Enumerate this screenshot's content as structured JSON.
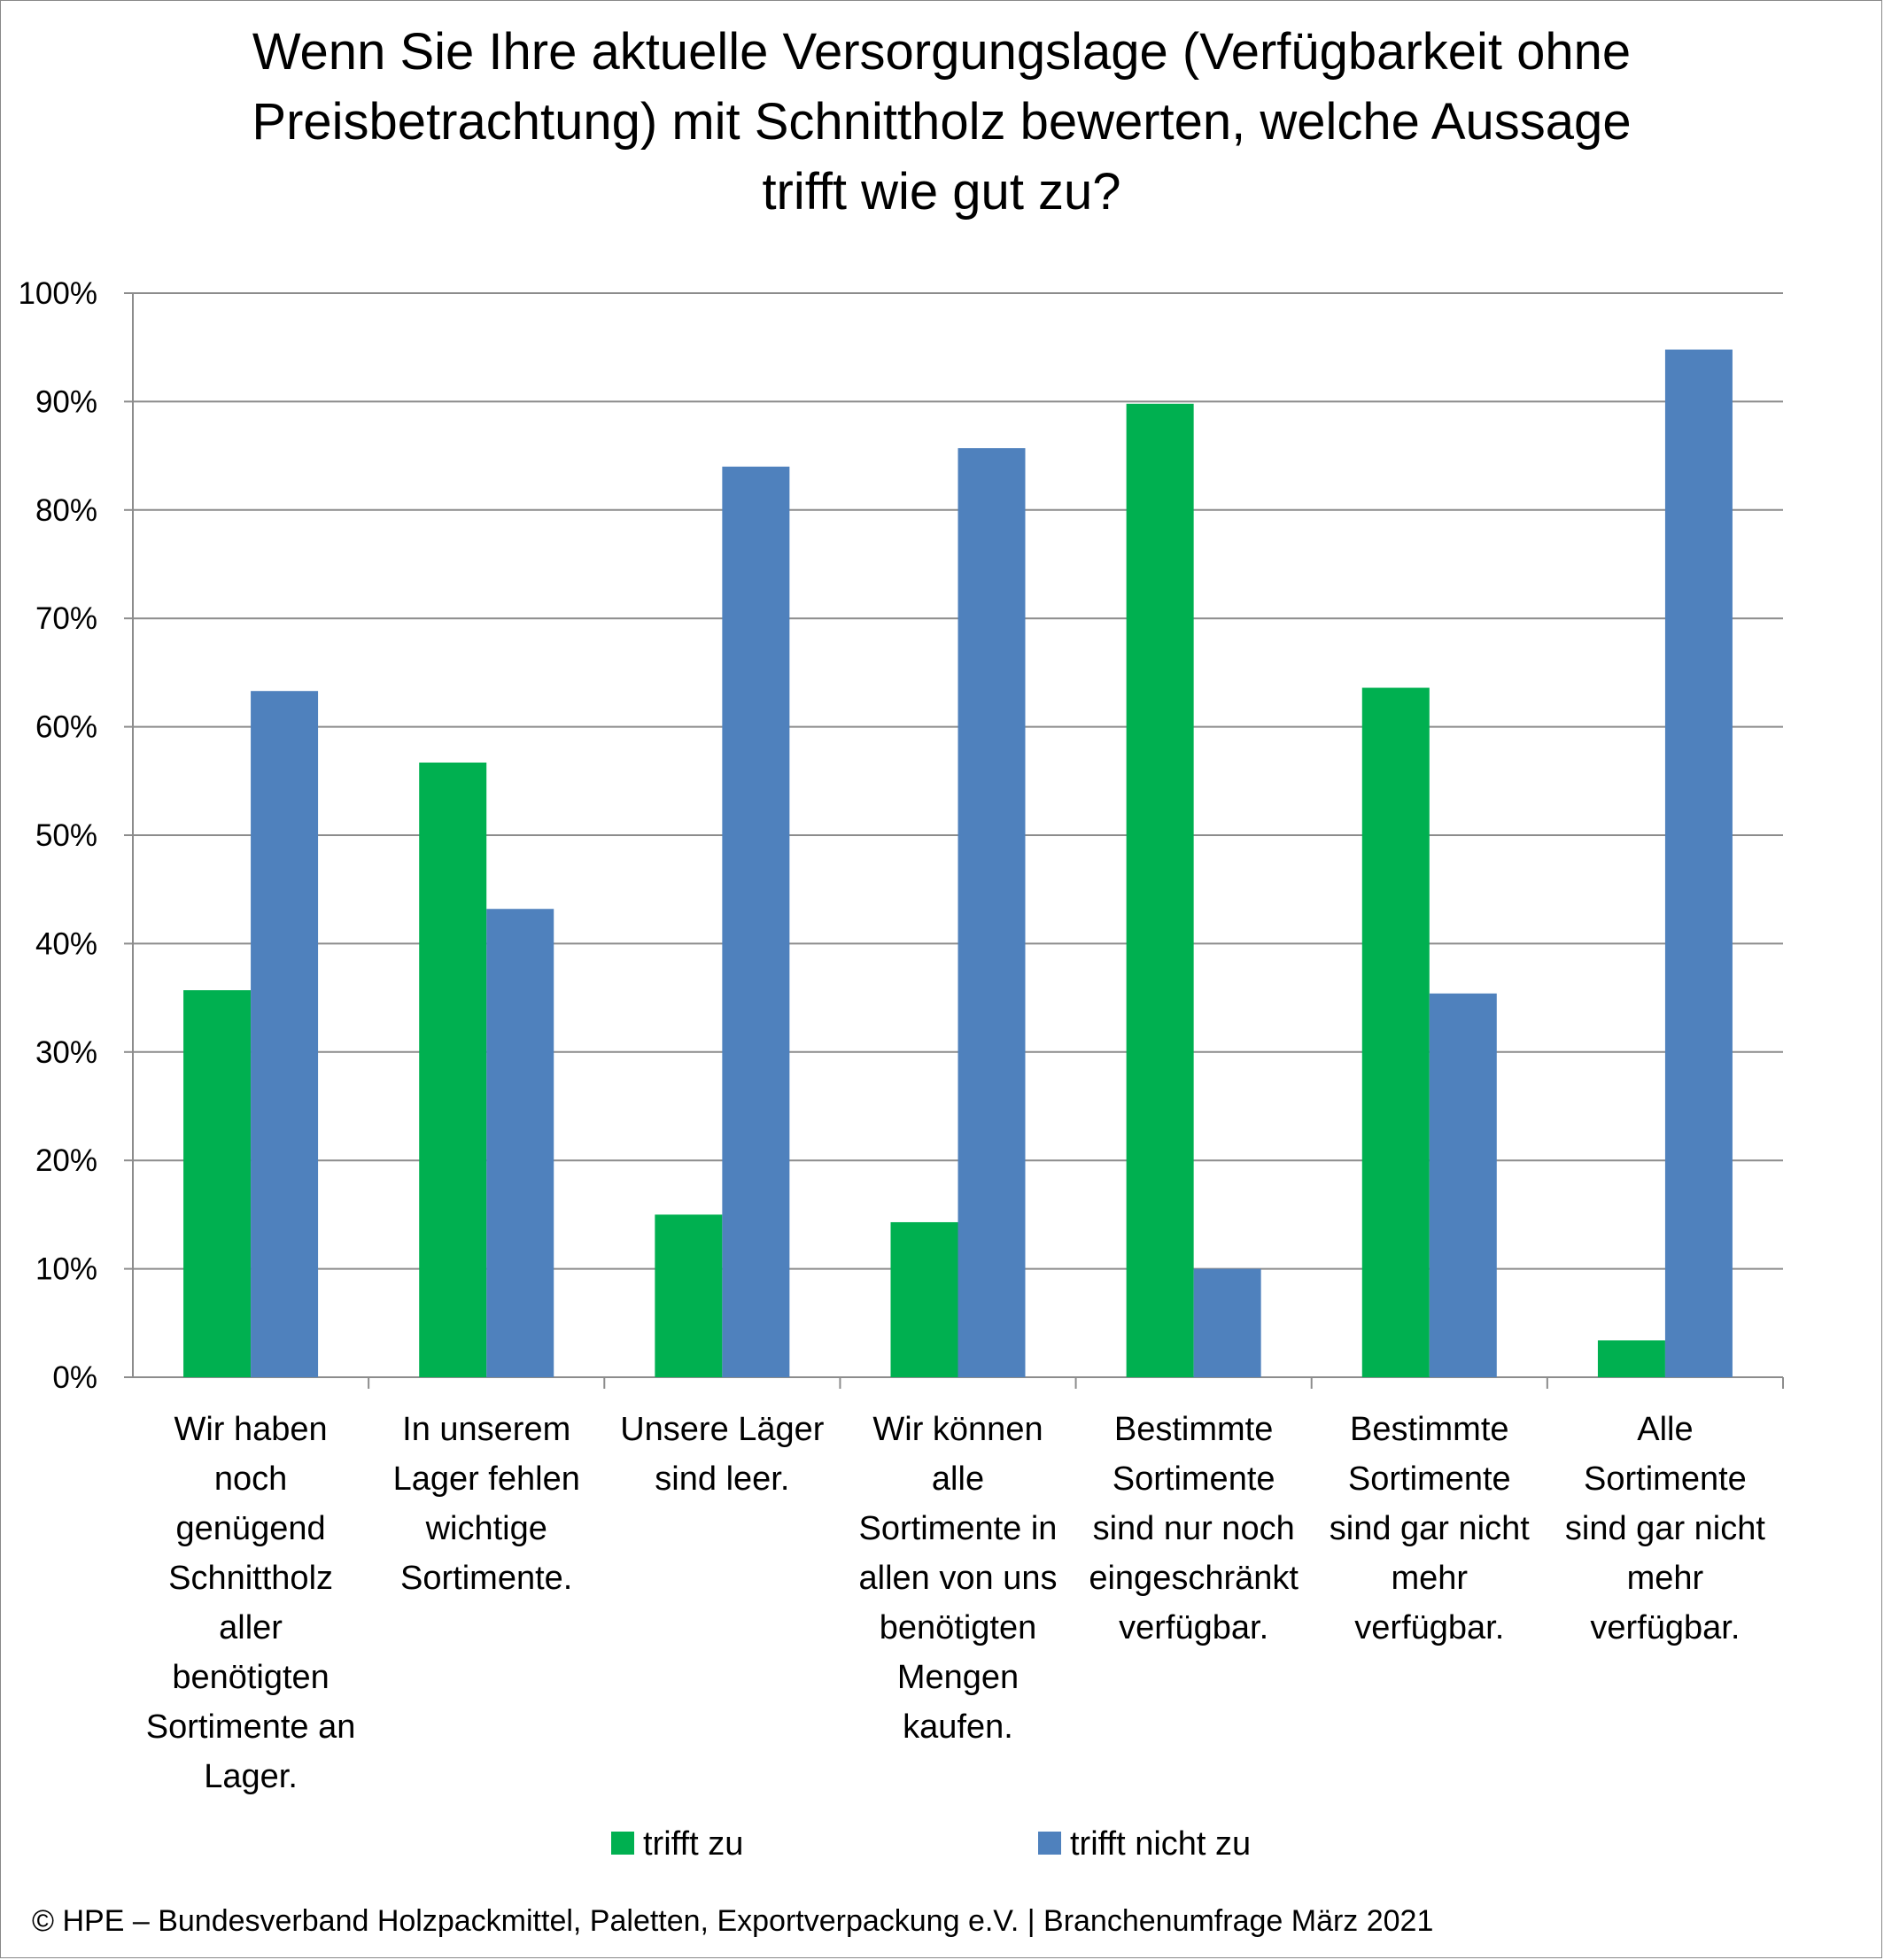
{
  "chart_data": {
    "type": "bar",
    "title_lines": [
      "Wenn Sie Ihre aktuelle Versorgungslage (Verfügbarkeit ohne",
      "Preisbetrachtung) mit Schnittholz bewerten, welche Aussage",
      "trifft wie gut zu?"
    ],
    "categories": [
      [
        "Wir haben",
        "noch",
        "genügend",
        "Schnittholz",
        "aller",
        "benötigten",
        "Sortimente an",
        "Lager."
      ],
      [
        "In unserem",
        "Lager fehlen",
        "wichtige",
        "Sortimente."
      ],
      [
        "Unsere Läger",
        "sind leer."
      ],
      [
        "Wir können",
        "alle",
        "Sortimente in",
        "allen von uns",
        "benötigten",
        "Mengen",
        "kaufen."
      ],
      [
        "Bestimmte",
        "Sortimente",
        "sind nur noch",
        "eingeschränkt",
        "verfügbar."
      ],
      [
        "Bestimmte",
        "Sortimente",
        "sind gar nicht",
        "mehr",
        "verfügbar."
      ],
      [
        "Alle",
        "Sortimente",
        "sind gar nicht",
        "mehr",
        "verfügbar."
      ]
    ],
    "series": [
      {
        "name": "trifft zu",
        "color": "#00b050",
        "values": [
          35.7,
          56.7,
          15.0,
          14.3,
          89.8,
          63.6,
          3.4
        ]
      },
      {
        "name": "trifft nicht zu",
        "color": "#4f81bd",
        "values": [
          63.3,
          43.2,
          84.0,
          85.7,
          10.0,
          35.4,
          94.8
        ]
      }
    ],
    "ylim": [
      0,
      100
    ],
    "yticks": [
      "0%",
      "10%",
      "20%",
      "30%",
      "40%",
      "50%",
      "60%",
      "70%",
      "80%",
      "90%",
      "100%"
    ],
    "grid": true,
    "legend_position": "bottom"
  },
  "footer": "© HPE – Bundesverband Holzpackmittel, Paletten, Exportverpackung e.V.  | Branchenumfrage März 2021"
}
